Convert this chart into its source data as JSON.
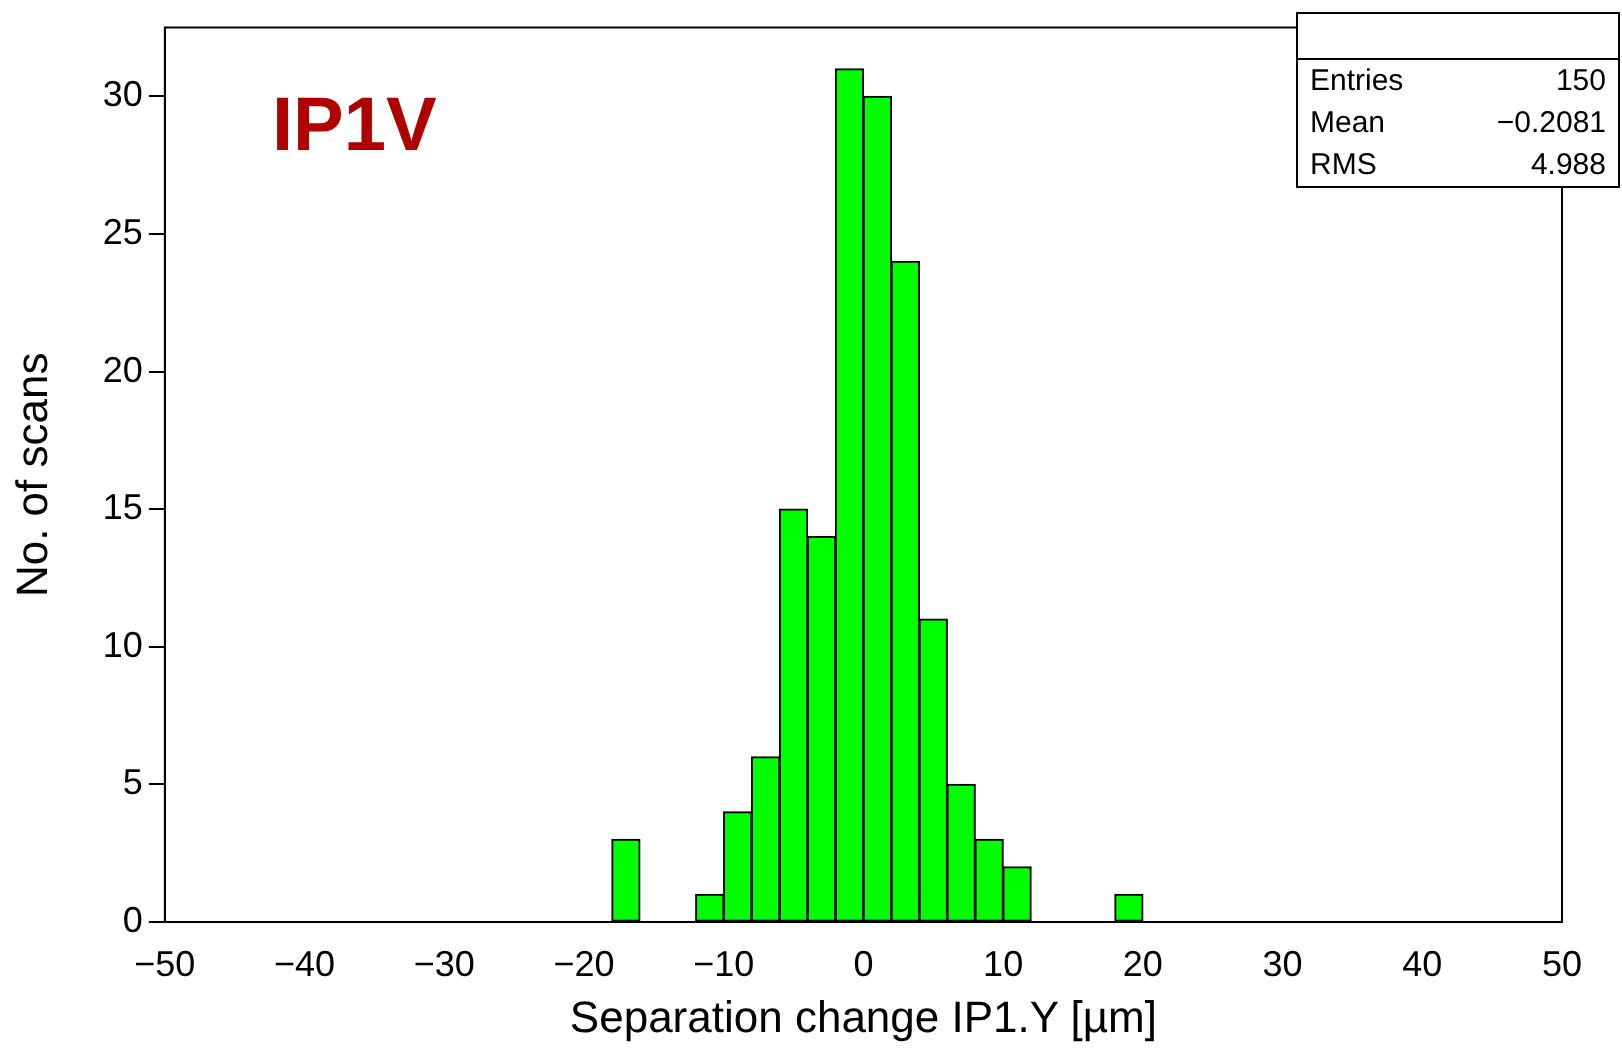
{
  "chart_data": {
    "type": "histogram",
    "xlabel": "Separation change IP1.Y [µm]",
    "ylabel": "No. of scans",
    "bins": [
      -50,
      -48,
      -46,
      -44,
      -42,
      -40,
      -38,
      -36,
      -34,
      -32,
      -30,
      -28,
      -26,
      -24,
      -22,
      -20,
      -18,
      -16,
      -14,
      -12,
      -10,
      -8,
      -6,
      -4,
      -2,
      0,
      2,
      4,
      6,
      8,
      10,
      12,
      14,
      16,
      18,
      20,
      22,
      24,
      26,
      28,
      30,
      32,
      34,
      36,
      38,
      40,
      42,
      44,
      46,
      48,
      50
    ],
    "values": [
      0,
      0,
      0,
      0,
      0,
      0,
      0,
      0,
      0,
      0,
      0,
      0,
      0,
      0,
      0,
      0,
      3,
      0,
      0,
      1,
      4,
      6,
      15,
      14,
      31,
      30,
      24,
      11,
      5,
      3,
      2,
      0,
      0,
      0,
      1,
      0,
      0,
      0,
      0,
      0,
      0,
      0,
      0,
      0,
      0,
      0,
      0,
      0,
      0,
      0
    ],
    "color": "#00ff00",
    "xlim": [
      -50,
      50
    ],
    "xticks": [
      -50,
      -40,
      -30,
      -20,
      -10,
      0,
      10,
      20,
      30,
      40,
      50
    ],
    "ylim": [
      0,
      32.5
    ],
    "yticks": [
      0,
      5,
      10,
      15,
      20,
      25,
      30
    ],
    "annotations": [
      "IP1V",
      "Entries",
      "150",
      "Mean",
      "−0.2081",
      "RMS",
      "4.988"
    ]
  }
}
